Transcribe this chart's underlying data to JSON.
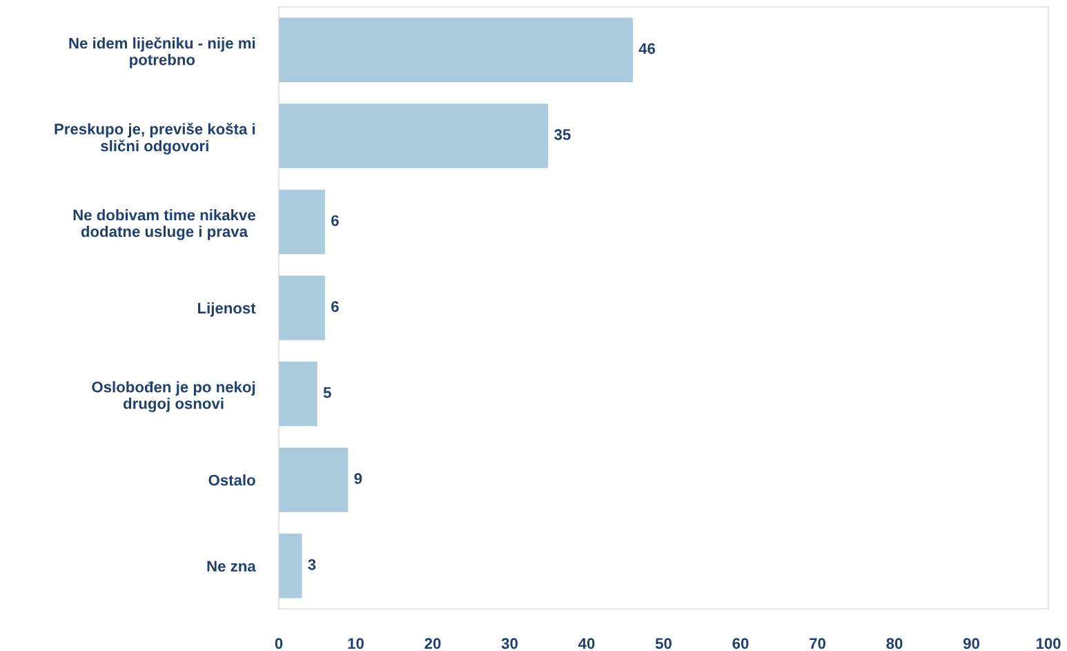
{
  "chart_data": {
    "type": "bar",
    "orientation": "horizontal",
    "categories": [
      "Ne idem liječniku - nije mi\npotrebno",
      "Preskupo je, previše košta i\nslični odgovori",
      "Ne dobivam time nikakve\ndodatne usluge i prava",
      "Lijenost",
      "Oslobođen je po nekoj\ndrugoj osnovi",
      "Ostalo",
      "Ne zna"
    ],
    "values": [
      46,
      35,
      6,
      6,
      5,
      9,
      3
    ],
    "color": "#a9cbdd",
    "xlim": [
      0,
      100
    ],
    "xticks": [
      0,
      10,
      20,
      30,
      40,
      50,
      60,
      70,
      80,
      90,
      100
    ],
    "data_labels": true,
    "grid": false,
    "legend": false
  }
}
